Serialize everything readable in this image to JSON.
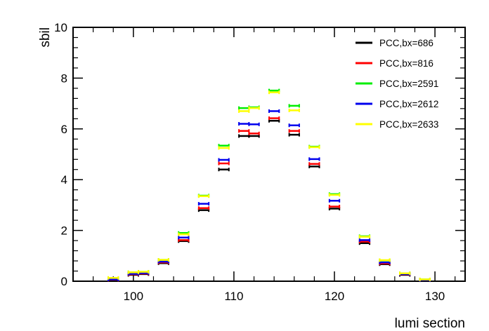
{
  "chart_data": {
    "type": "scatter",
    "title": "",
    "xlabel": "lumi section",
    "ylabel": "sbil",
    "xlim": [
      94,
      133
    ],
    "ylim": [
      0,
      10
    ],
    "x_ticks": [
      100,
      110,
      120,
      130
    ],
    "y_ticks": [
      0,
      2,
      4,
      6,
      8,
      10
    ],
    "x_tick_labels": [
      "100",
      "110",
      "120",
      "130"
    ],
    "y_tick_labels": [
      "0",
      "2",
      "4",
      "6",
      "8",
      "10"
    ],
    "grid": false,
    "legend_position": "top-right",
    "bin_width": 1,
    "x": [
      98,
      100,
      101,
      103,
      105,
      107,
      109,
      111,
      112,
      114,
      116,
      118,
      120,
      123,
      125,
      127,
      129
    ],
    "series": [
      {
        "name": "PCC,bx=686",
        "color": "#000000",
        "values": [
          0.05,
          0.25,
          0.28,
          0.71,
          1.58,
          2.8,
          4.4,
          5.72,
          5.72,
          6.32,
          5.77,
          4.52,
          2.86,
          1.5,
          0.67,
          0.25,
          0.04
        ]
      },
      {
        "name": "PCC,bx=816",
        "color": "#ff0000",
        "values": [
          0.06,
          0.27,
          0.3,
          0.74,
          1.62,
          2.88,
          4.64,
          5.92,
          5.82,
          6.42,
          5.92,
          4.62,
          2.94,
          1.56,
          0.7,
          0.27,
          0.05
        ]
      },
      {
        "name": "PCC,bx=2591",
        "color": "#00ee00",
        "values": [
          0.1,
          0.35,
          0.37,
          0.84,
          1.9,
          3.37,
          5.34,
          6.82,
          6.85,
          7.51,
          6.91,
          5.3,
          3.43,
          1.77,
          0.82,
          0.31,
          0.07
        ]
      },
      {
        "name": "PCC,bx=2612",
        "color": "#0000ee",
        "values": [
          0.07,
          0.29,
          0.32,
          0.77,
          1.72,
          3.05,
          4.78,
          6.2,
          6.18,
          6.7,
          6.14,
          4.81,
          3.17,
          1.62,
          0.74,
          0.28,
          0.05
        ]
      },
      {
        "name": "PCC,bx=2633",
        "color": "#ffff00",
        "values": [
          0.13,
          0.35,
          0.37,
          0.84,
          1.85,
          3.35,
          5.25,
          6.7,
          6.82,
          7.44,
          6.73,
          5.28,
          3.4,
          1.75,
          0.83,
          0.31,
          0.07
        ]
      }
    ]
  }
}
